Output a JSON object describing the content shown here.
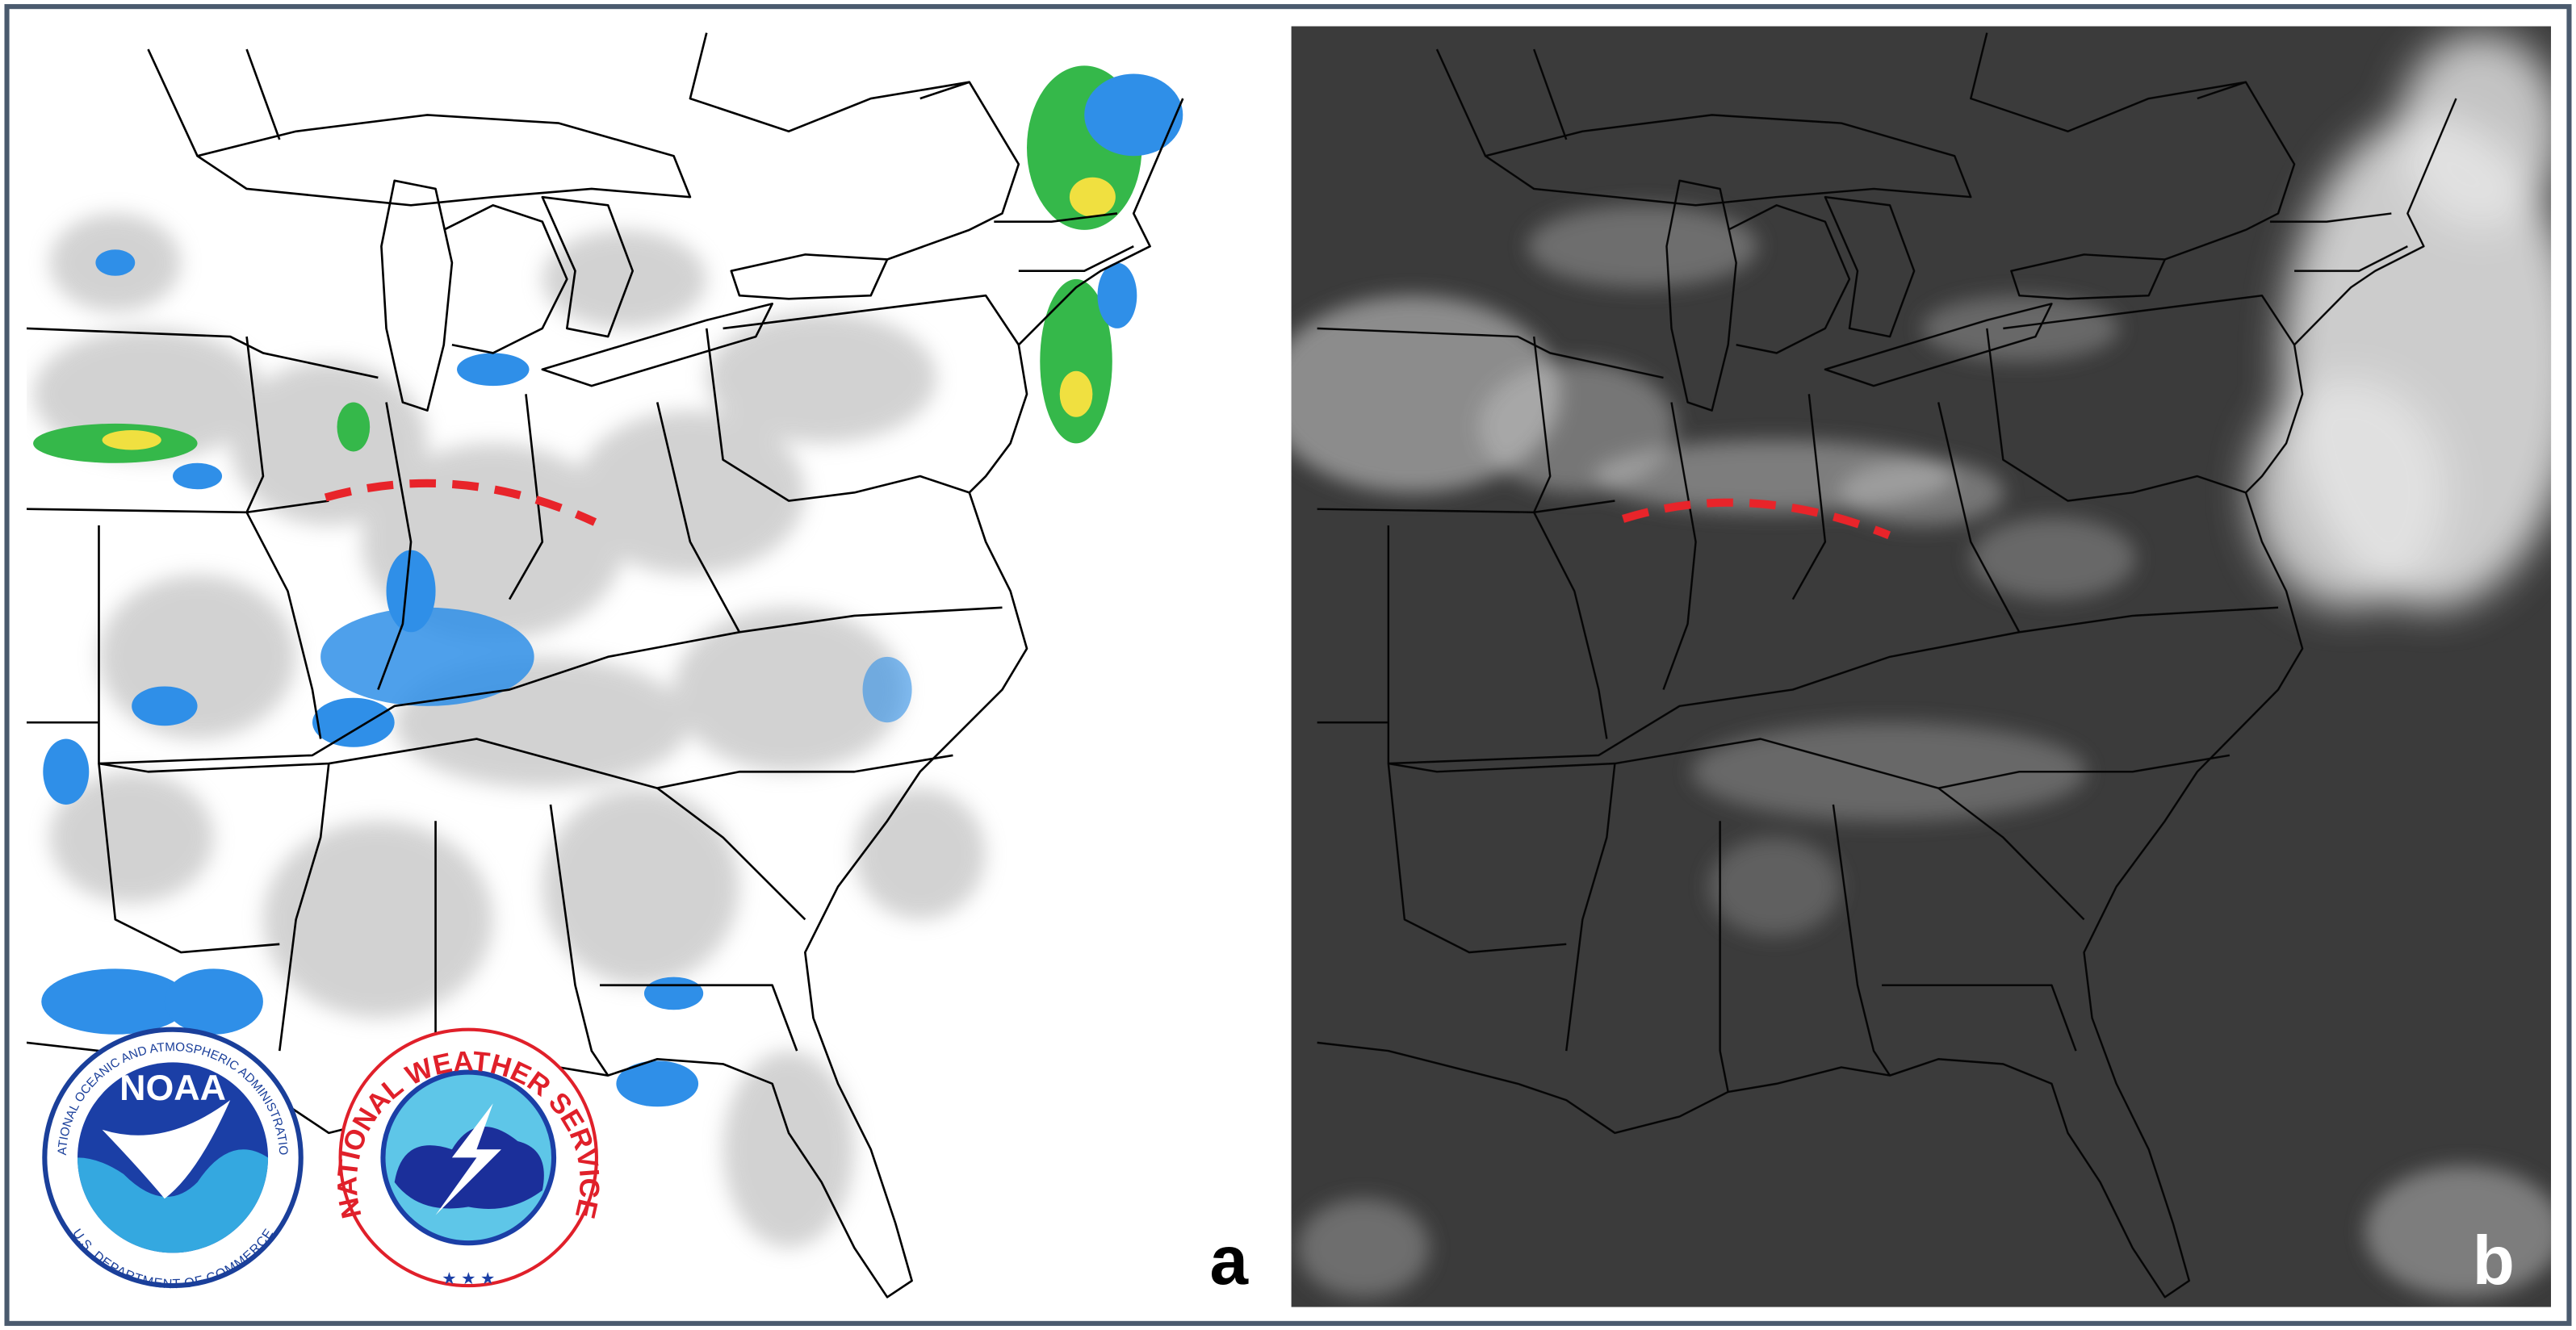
{
  "panels": [
    {
      "label": "a"
    },
    {
      "label": "b"
    }
  ],
  "logos": {
    "noaa": {
      "name": "NOAA",
      "ring_top": "NATIONAL OCEANIC AND ATMOSPHERIC ADMINISTRATION",
      "ring_bottom": "U.S. DEPARTMENT OF COMMERCE"
    },
    "nws": {
      "ring": "NATIONAL WEATHER SERVICE"
    }
  }
}
